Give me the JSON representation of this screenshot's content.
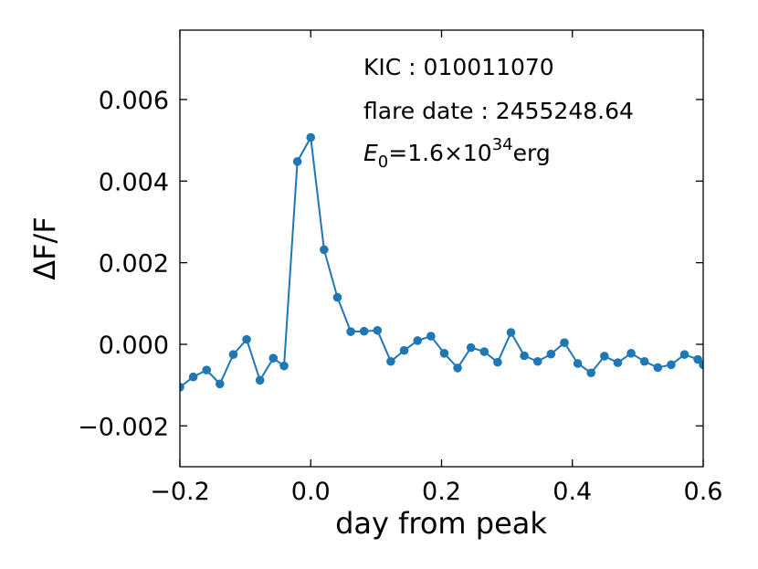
{
  "chart_data": {
    "type": "line",
    "title": "",
    "xlabel": "day from peak",
    "ylabel": "ΔF/F",
    "xlim": [
      -0.2,
      0.6
    ],
    "ylim": [
      -0.003,
      0.0077
    ],
    "x_ticks": [
      -0.2,
      0.0,
      0.2,
      0.4,
      0.6
    ],
    "x_tick_labels": [
      "−0.2",
      "0.0",
      "0.2",
      "0.4",
      "0.6"
    ],
    "y_ticks": [
      -0.002,
      0.0,
      0.002,
      0.004,
      0.006
    ],
    "y_tick_labels": [
      "−0.002",
      "0.000",
      "0.002",
      "0.004",
      "0.006"
    ],
    "grid": false,
    "legend": "none",
    "series_color": "#1f77b4",
    "series": [
      {
        "x": [
          -0.2,
          -0.1796,
          -0.1592,
          -0.1388,
          -0.1184,
          -0.098,
          -0.0776,
          -0.0572,
          -0.0408,
          -0.0204,
          0.0,
          0.0204,
          0.0408,
          0.0612,
          0.0816,
          0.102,
          0.1224,
          0.1428,
          0.1633,
          0.1837,
          0.2041,
          0.2245,
          0.2449,
          0.2653,
          0.2857,
          0.3061,
          0.3265,
          0.3469,
          0.3673,
          0.3878,
          0.4082,
          0.4286,
          0.449,
          0.4694,
          0.4898,
          0.5102,
          0.5306,
          0.551,
          0.5714,
          0.5918,
          0.6
        ],
        "y": [
          -0.00105,
          -0.0008,
          -0.00063,
          -0.00097,
          -0.00025,
          0.00012,
          -0.00088,
          -0.00034,
          -0.00053,
          0.00448,
          0.00507,
          0.00232,
          0.00115,
          0.00031,
          0.00032,
          0.00034,
          -0.00042,
          -0.00015,
          9e-05,
          0.0002,
          -0.00022,
          -0.00058,
          -8e-05,
          -0.00018,
          -0.00044,
          0.00029,
          -0.00028,
          -0.00042,
          -0.00024,
          4e-05,
          -0.00047,
          -0.0007,
          -0.00029,
          -0.00045,
          -0.00022,
          -0.00042,
          -0.00057,
          -0.0005,
          -0.00025,
          -0.00037,
          -0.0005
        ]
      }
    ],
    "annotations": [
      {
        "id": "kic",
        "text": "KIC : 010011070"
      },
      {
        "id": "date",
        "text": "flare date : 2455248.64"
      },
      {
        "id": "energy",
        "sym": "E",
        "sub": "0",
        "mid": "=1.6×10",
        "sup": "34",
        "unit": "erg"
      }
    ]
  }
}
